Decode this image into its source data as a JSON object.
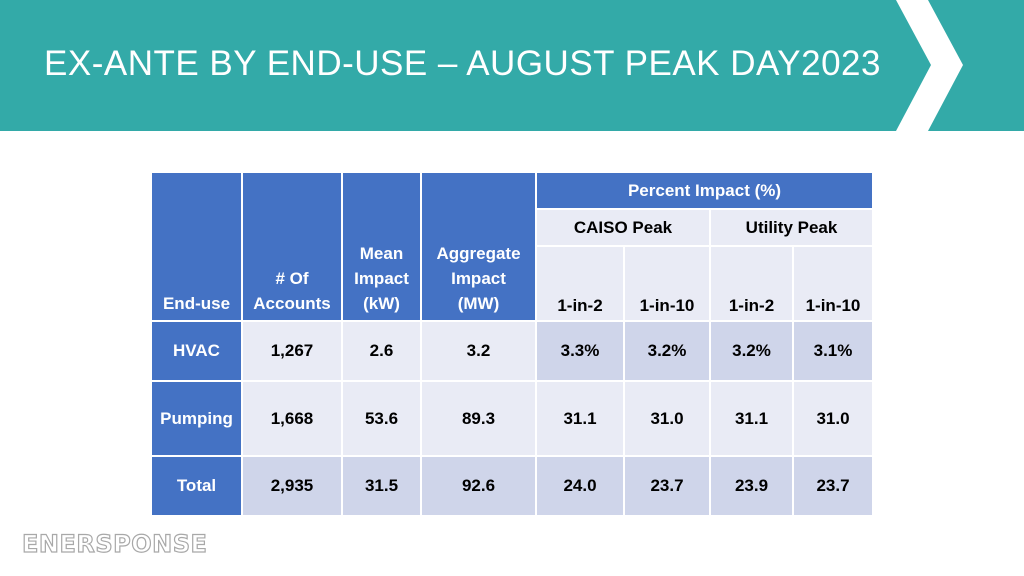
{
  "slide": {
    "title": "EX-ANTE BY END-USE – AUGUST PEAK DAY2023",
    "accent_color": "#33aaa8",
    "logo_text": "ENERSPONSE"
  },
  "table": {
    "headers": {
      "end_use": "End-use",
      "accounts": "# Of Accounts",
      "mean_impact": "Mean Impact (kW)",
      "aggregate_impact": "Aggregate Impact (MW)",
      "percent_impact": "Percent Impact (%)",
      "caiso_peak": "CAISO Peak",
      "utility_peak": "Utility Peak",
      "cols": [
        "1-in-2",
        "1-in-10",
        "1-in-2",
        "1-in-10"
      ]
    },
    "rows": [
      {
        "end_use": "HVAC",
        "accounts": "1,267",
        "mean": "2.6",
        "aggregate": "3.2",
        "caiso_1in2": "3.3%",
        "caiso_1in10": "3.2%",
        "utility_1in2": "3.2%",
        "utility_1in10": "3.1%"
      },
      {
        "end_use": "Pumping",
        "accounts": "1,668",
        "mean": "53.6",
        "aggregate": "89.3",
        "caiso_1in2": "31.1",
        "caiso_1in10": "31.0",
        "utility_1in2": "31.1",
        "utility_1in10": "31.0"
      },
      {
        "end_use": "Total",
        "accounts": "2,935",
        "mean": "31.5",
        "aggregate": "92.6",
        "caiso_1in2": "24.0",
        "caiso_1in10": "23.7",
        "utility_1in2": "23.9",
        "utility_1in10": "23.7"
      }
    ]
  }
}
